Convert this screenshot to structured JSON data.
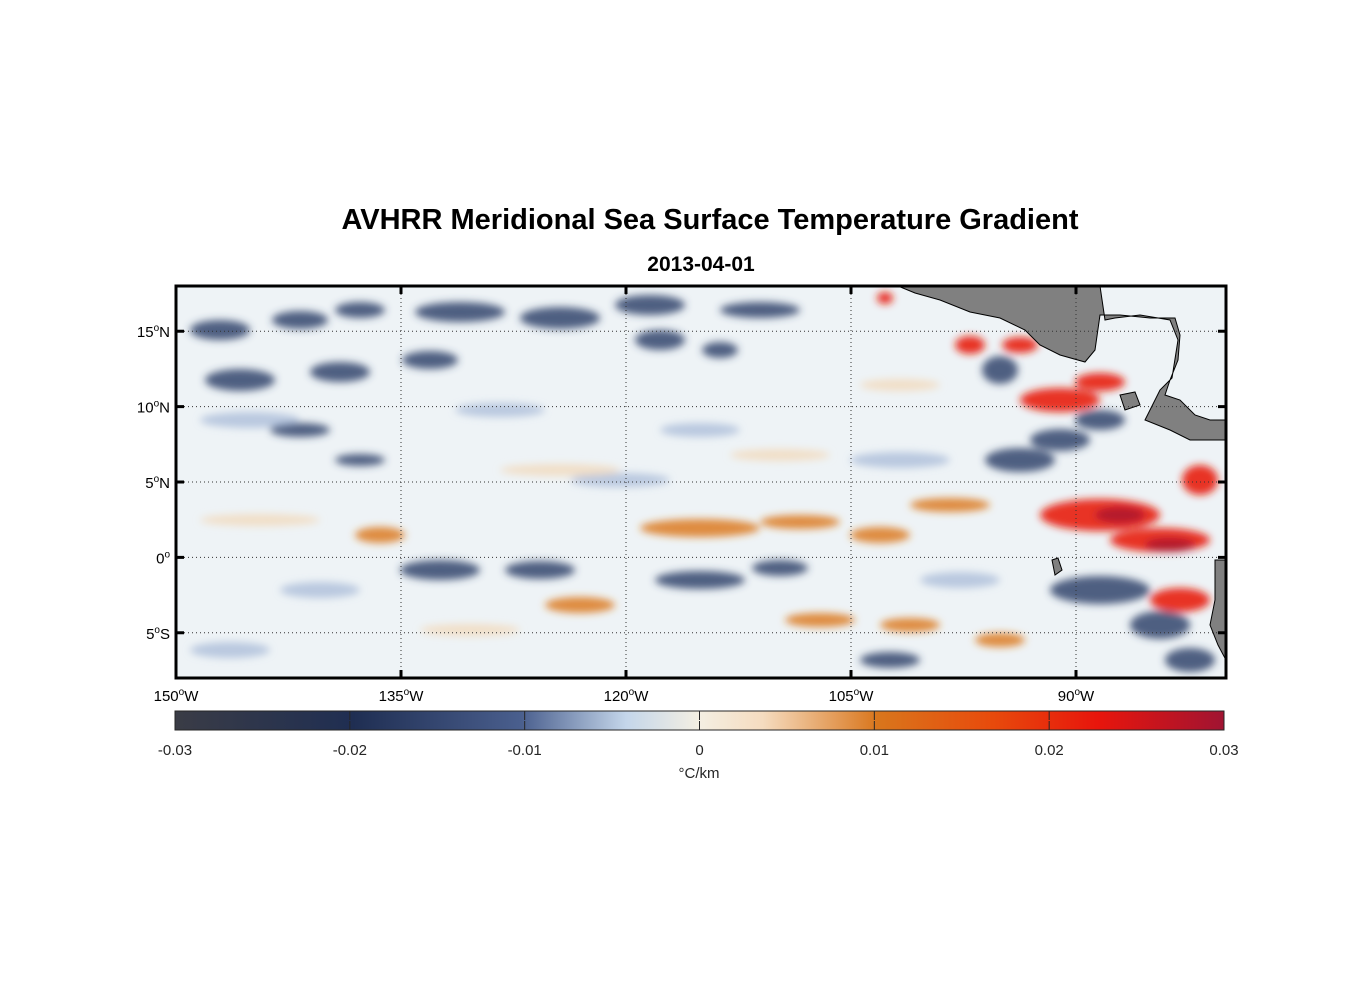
{
  "title": "AVHRR Meridional Sea Surface Temperature Gradient",
  "subtitle": "2013-04-01",
  "map": {
    "lon_range": [
      -150,
      -80
    ],
    "lat_range": [
      -8,
      18
    ],
    "lon_ticks": [
      {
        "value": -150,
        "deg": "150",
        "hemi": "W"
      },
      {
        "value": -135,
        "deg": "135",
        "hemi": "W"
      },
      {
        "value": -120,
        "deg": "120",
        "hemi": "W"
      },
      {
        "value": -105,
        "deg": "105",
        "hemi": "W"
      },
      {
        "value": -90,
        "deg": "90",
        "hemi": "W"
      }
    ],
    "lat_ticks": [
      {
        "value": 15,
        "deg": "15",
        "hemi": "N"
      },
      {
        "value": 10,
        "deg": "10",
        "hemi": "N"
      },
      {
        "value": 5,
        "deg": "5",
        "hemi": "N"
      },
      {
        "value": 0,
        "deg": "0",
        "hemi": ""
      },
      {
        "value": -5,
        "deg": "5",
        "hemi": "S"
      }
    ],
    "gridlines": "dotted",
    "land_color": "#808080",
    "ocean_background": "#eef3f6"
  },
  "colorbar": {
    "range": [
      -0.03,
      0.03
    ],
    "tick_labels": [
      "-0.03",
      "-0.02",
      "-0.01",
      "0",
      "0.01",
      "0.02",
      "0.03"
    ],
    "unit": "°C/km",
    "colors": [
      "#3a3c46",
      "#1f2e52",
      "#4a5f8e",
      "#c4d6ea",
      "#f4efe2",
      "#f5dcc0",
      "#d9761c",
      "#e84a0c",
      "#e8150c",
      "#a01432"
    ]
  }
}
